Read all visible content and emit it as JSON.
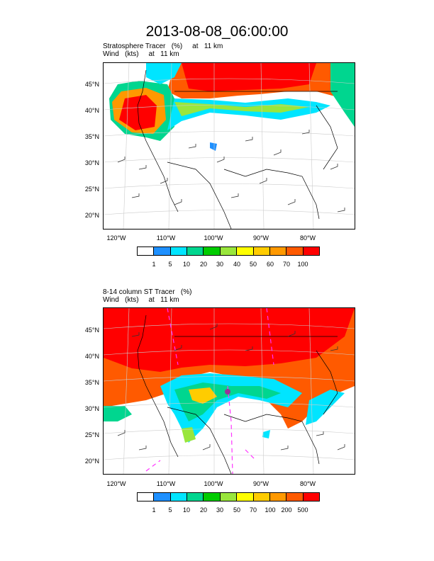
{
  "title": "2013-08-08_06:00:00",
  "panels": [
    {
      "sub1": "Stratosphere Tracer   (%)     at   11 km",
      "sub2": "Wind   (kts)     at   11 km",
      "lat_labels": [
        "45°N",
        "40°N",
        "35°N",
        "30°N",
        "25°N",
        "20°N"
      ],
      "lon_labels": [
        "120°W",
        "110°W",
        "100°W",
        "90°W",
        "80°W"
      ],
      "colorbar": [
        "1",
        "5",
        "10",
        "20",
        "30",
        "40",
        "50",
        "60",
        "70",
        "100"
      ]
    },
    {
      "sub1": "8-14 column ST Tracer   (%)",
      "sub2": "Wind   (kts)     at   11 km",
      "lat_labels": [
        "45°N",
        "40°N",
        "35°N",
        "30°N",
        "25°N",
        "20°N"
      ],
      "lon_labels": [
        "120°W",
        "110°W",
        "100°W",
        "90°W",
        "80°W"
      ],
      "colorbar": [
        "1",
        "5",
        "10",
        "20",
        "30",
        "50",
        "70",
        "100",
        "200",
        "500"
      ]
    }
  ],
  "colors": [
    "#ffffff",
    "#1e90ff",
    "#00e5ff",
    "#00d68f",
    "#00cc00",
    "#99e63c",
    "#ffff00",
    "#ffcc00",
    "#ff9900",
    "#ff5a00",
    "#ff0000"
  ]
}
